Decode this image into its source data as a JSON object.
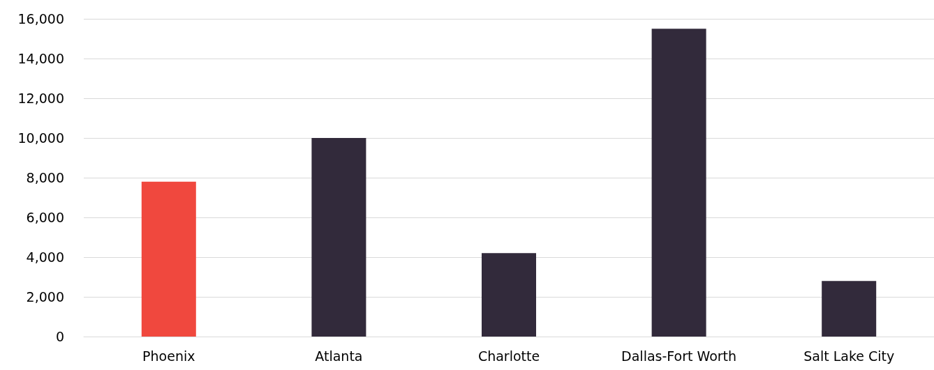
{
  "chart_data": {
    "type": "bar",
    "categories": [
      "Phoenix",
      "Atlanta",
      "Charlotte",
      "Dallas-Fort Worth",
      "Salt Lake City"
    ],
    "values": [
      7800,
      10000,
      4200,
      15500,
      2800
    ],
    "colors": [
      "#f0483e",
      "#322a3b",
      "#322a3b",
      "#322a3b",
      "#322a3b"
    ],
    "ylim": [
      0,
      16000
    ],
    "yticks": [
      0,
      {
        "value": 2000,
        "label": "2,000"
      },
      {
        "value": 4000,
        "label": "4,000"
      },
      {
        "value": 6000,
        "label": "6,000"
      },
      {
        "value": 8000,
        "label": "8,000"
      },
      {
        "value": 10000,
        "label": "10,000"
      },
      {
        "value": 12000,
        "label": "12,000"
      },
      {
        "value": 14000,
        "label": "14,000"
      },
      {
        "value": 16000,
        "label": "16,000"
      }
    ],
    "grid": "y"
  }
}
